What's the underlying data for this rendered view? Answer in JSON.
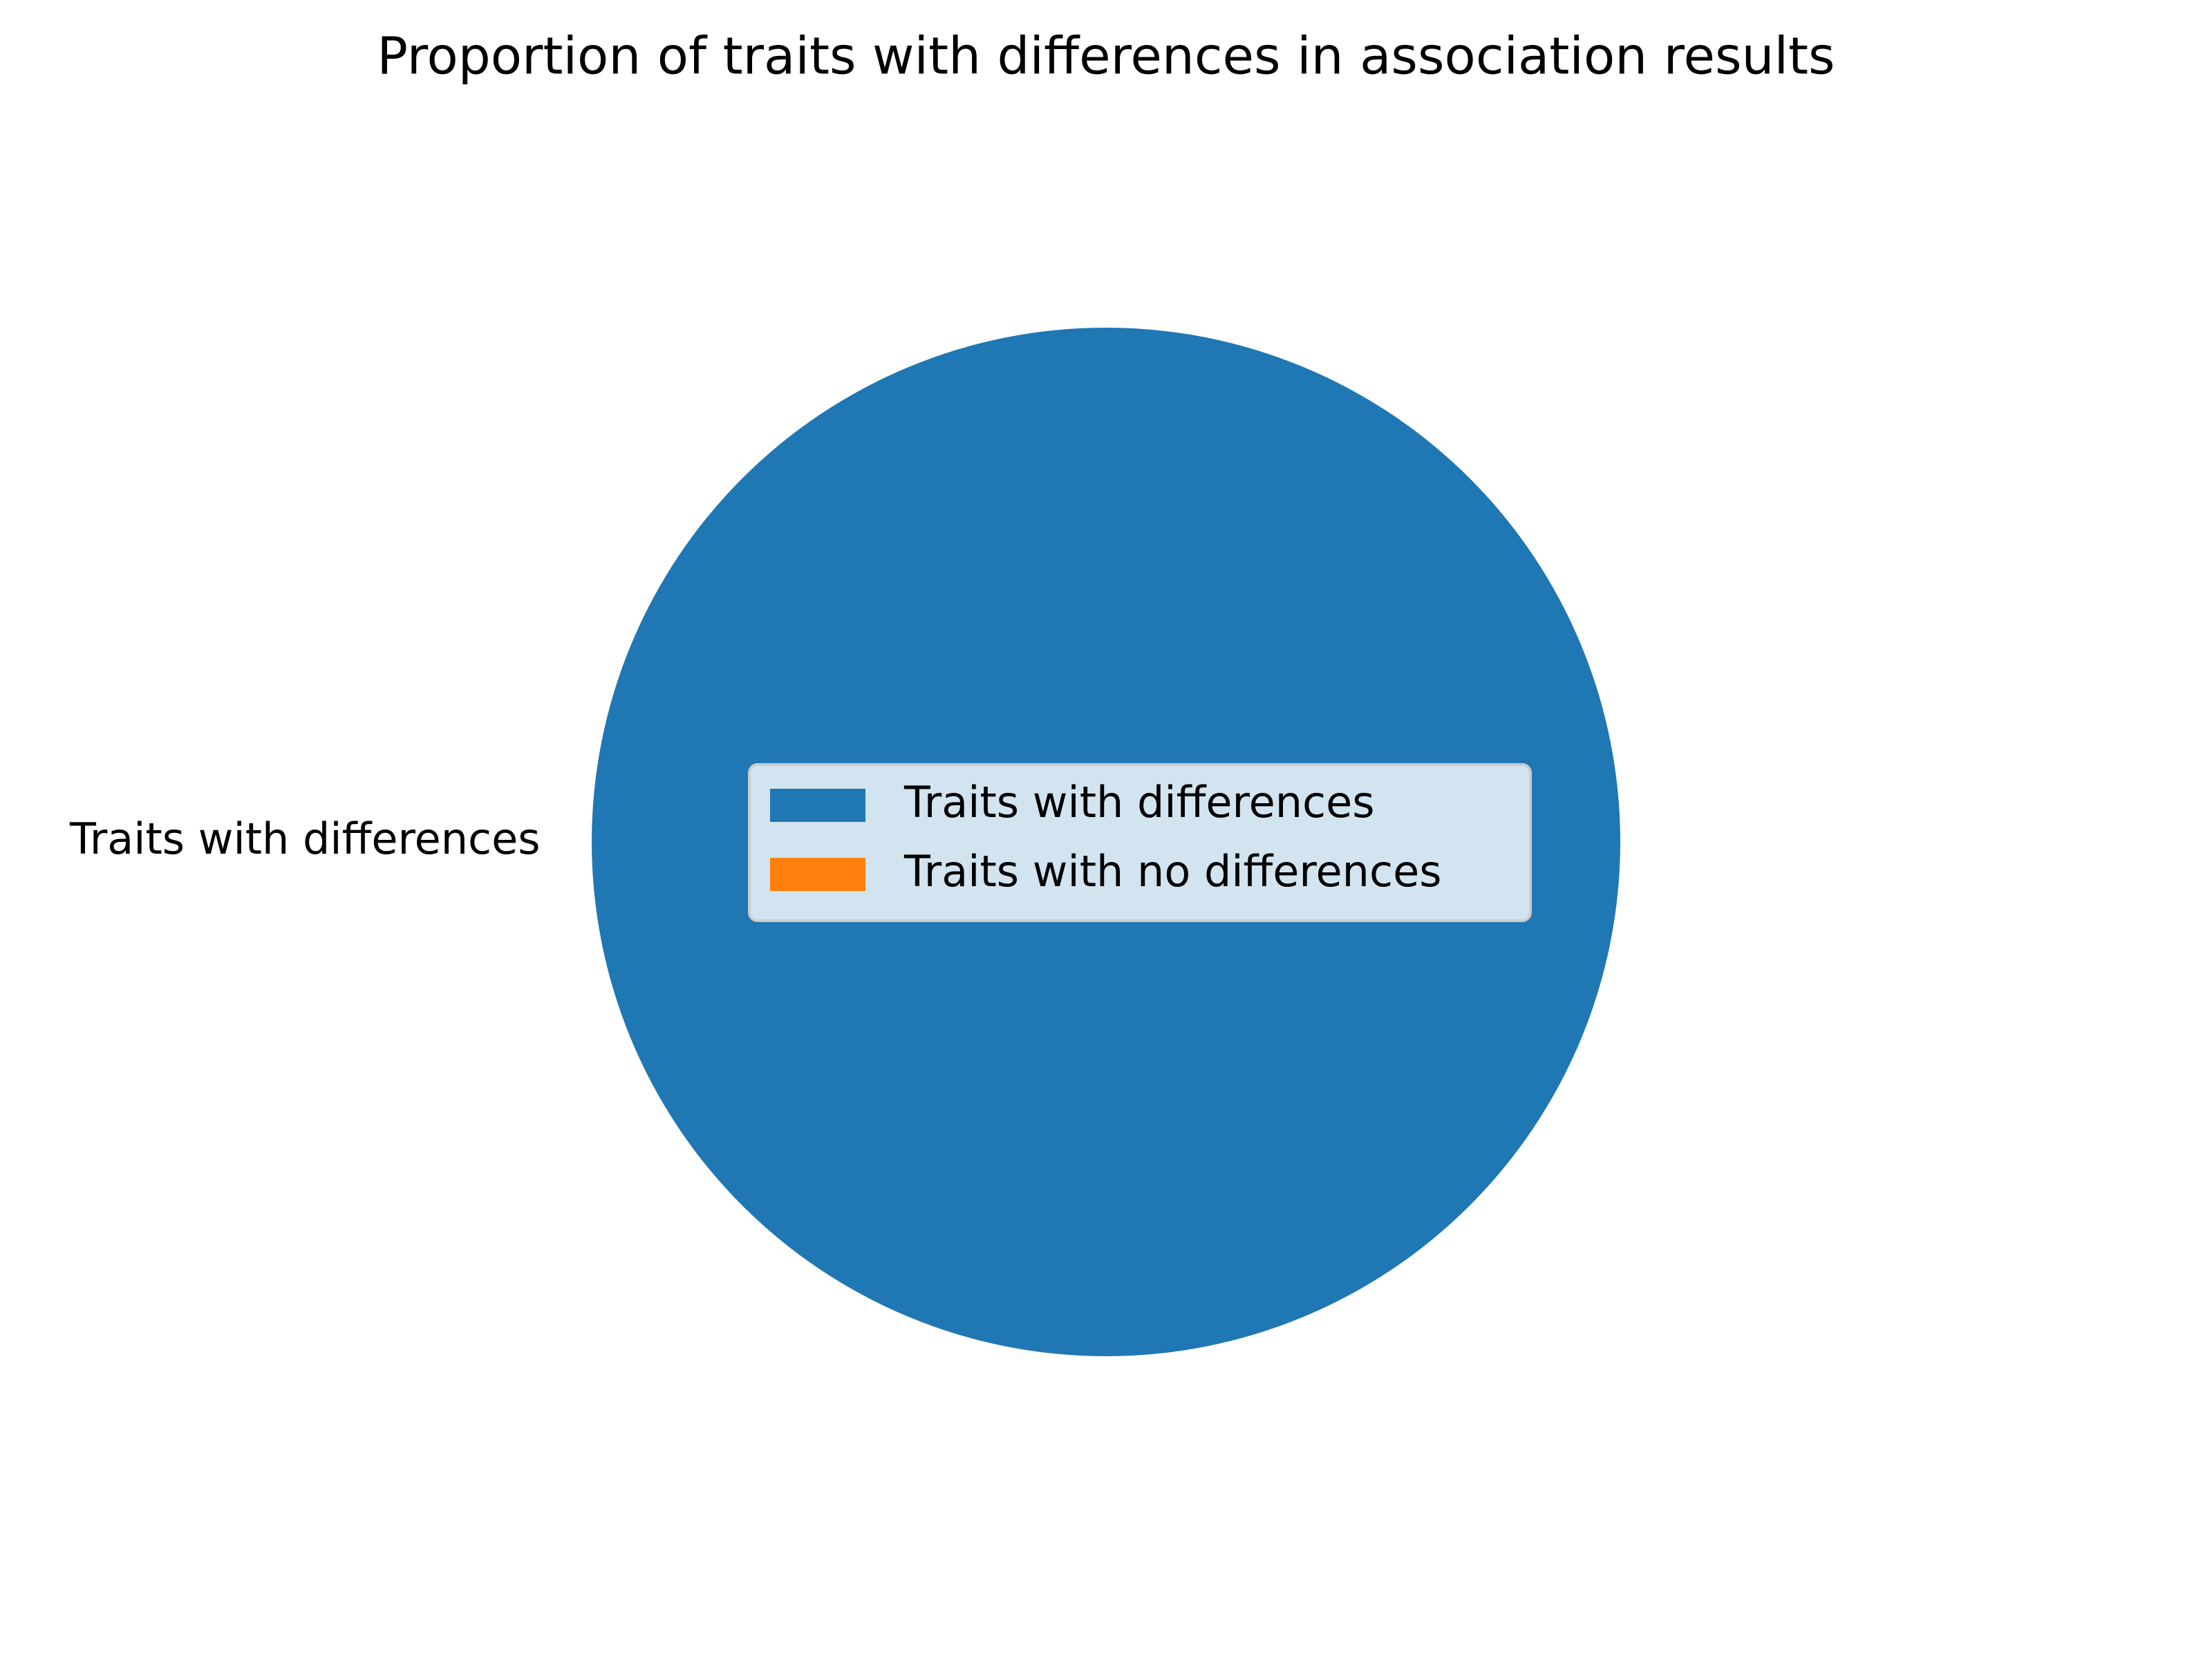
{
  "chart_data": {
    "type": "pie",
    "title": "Proportion of traits with differences in association results",
    "categories": [
      "Traits with differences",
      "Traits with no differences"
    ],
    "values": [
      1,
      0
    ],
    "slice_labels": [
      "Traits with differences",
      ""
    ],
    "colors": [
      "#1f77b4",
      "#ff7f0e"
    ],
    "legend": {
      "placement": "center",
      "entries": [
        "Traits with differences",
        "Traits with no differences"
      ]
    }
  }
}
